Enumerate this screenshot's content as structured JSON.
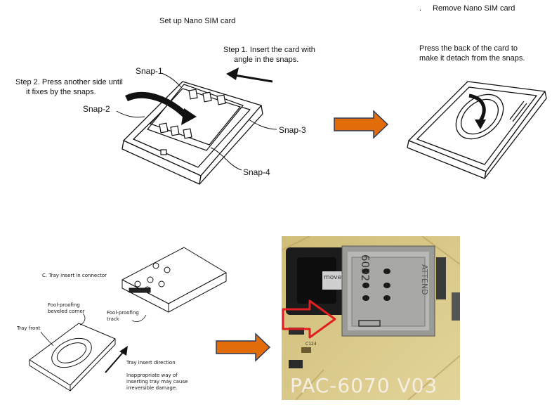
{
  "top_left": {
    "title": "Set up Nano SIM card",
    "step1_line1": "Step 1. Insert the card with",
    "step1_line2": "angle in the snaps.",
    "step2_line1": "Step 2. Press another side until",
    "step2_line2": "it fixes by the snaps.",
    "snap1": "Snap-1",
    "snap2": "Snap-2",
    "snap3": "Snap-3",
    "snap4": "Snap-4"
  },
  "top_right": {
    "title": "Remove Nano SIM card",
    "bullet": ".",
    "instr_line1": "Press the back of the card to",
    "instr_line2": "make it detach from the snaps."
  },
  "bottom_left": {
    "heading": "C.   Tray insert in connector",
    "bevel_line1": "Fool-proofing",
    "bevel_line2": "beveled corner",
    "track_line1": "Fool-proofing",
    "track_line2": "track",
    "tray_front": "Tray front",
    "direction": "Tray insert direction",
    "warn_line1": "Inappropriate way of",
    "warn_line2": "inserting tray may cause",
    "warn_line3": "irreversible damage."
  },
  "photo": {
    "board_label": "PAC-6070 V03",
    "chip_text": "6032",
    "side_text": "ATTEND",
    "tray_text": "move",
    "cap_label": "C124"
  },
  "colors": {
    "process_arrow": "#e36c0a",
    "photo_arrow": "#e02020",
    "board": "#d9c98a"
  },
  "icons": [
    "process-arrow-icon",
    "process-arrow-icon",
    "red-arrow-icon"
  ]
}
